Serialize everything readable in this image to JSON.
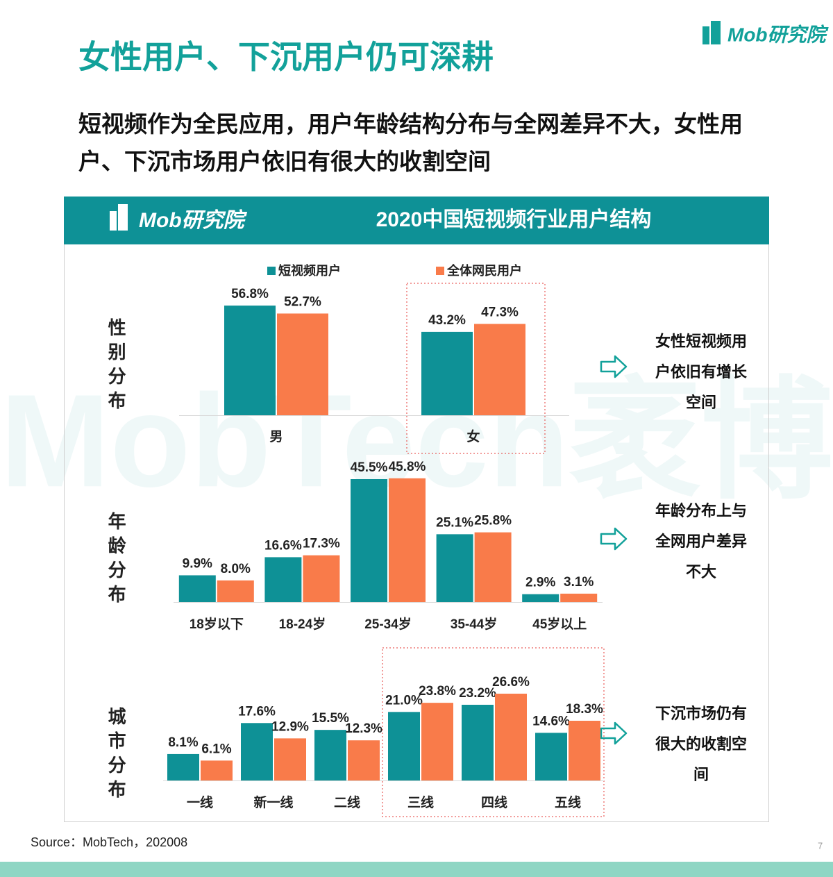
{
  "logo": "Mob研究院",
  "title": "女性用户、下沉用户仍可深耕",
  "subtitle": "短视频作为全民应用，用户年龄结构分布与全网差异不大，女性用户、下沉市场用户依旧有很大的收割空间",
  "panel_title": "2020中国短视频行业用户结构",
  "watermark": "MobTech袤博",
  "source": "Source：MobTech，202008",
  "page_number": "7",
  "chart_data": [
    {
      "type": "bar",
      "label": "性别分布",
      "note": "女性短视频用户依旧有增长空间",
      "categories": [
        "男",
        "女"
      ],
      "series": [
        {
          "name": "短视频用户",
          "color": "#0e9196",
          "values": [
            56.8,
            43.2
          ],
          "value_labels": [
            "56.8%",
            "43.2%"
          ]
        },
        {
          "name": "全体网民用户",
          "color": "#f97b4a",
          "values": [
            52.7,
            47.3
          ],
          "value_labels": [
            "52.7%",
            "47.3%"
          ]
        }
      ]
    },
    {
      "type": "bar",
      "label": "年龄分布",
      "note": "年龄分布上与全网用户差异不大",
      "categories": [
        "18岁以下",
        "18-24岁",
        "25-34岁",
        "35-44岁",
        "45岁以上"
      ],
      "series": [
        {
          "color": "#0e9196",
          "values": [
            9.9,
            16.6,
            45.5,
            25.1,
            2.9
          ],
          "value_labels": [
            "9.9%",
            "16.6%",
            "45.5%",
            "25.1%",
            "2.9%"
          ]
        },
        {
          "color": "#f97b4a",
          "values": [
            8.0,
            17.3,
            45.8,
            25.8,
            3.1
          ],
          "value_labels": [
            "8.0%",
            "17.3%",
            "45.8%",
            "25.8%",
            "3.1%"
          ]
        }
      ]
    },
    {
      "type": "bar",
      "label": "城市分布",
      "note": "下沉市场仍有很大的收割空间",
      "categories": [
        "一线",
        "新一线",
        "二线",
        "三线",
        "四线",
        "五线"
      ],
      "series": [
        {
          "color": "#0e9196",
          "values": [
            8.1,
            17.6,
            15.5,
            21.0,
            23.2,
            14.6
          ],
          "value_labels": [
            "8.1%",
            "17.6%",
            "15.5%",
            "21.0%",
            "23.2%",
            "14.6%"
          ]
        },
        {
          "color": "#f97b4a",
          "values": [
            6.1,
            12.9,
            12.3,
            23.8,
            26.6,
            18.3
          ],
          "value_labels": [
            "6.1%",
            "12.9%",
            "12.3%",
            "23.8%",
            "26.6%",
            "18.3%"
          ]
        }
      ]
    }
  ]
}
